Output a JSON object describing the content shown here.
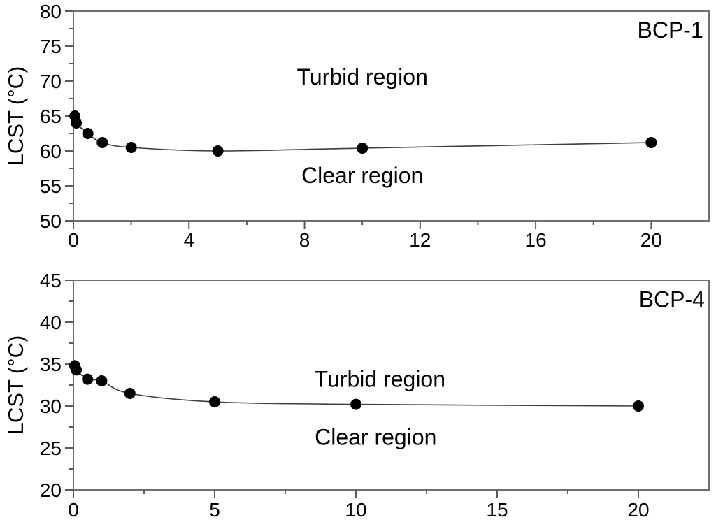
{
  "figure": {
    "background": "#ffffff",
    "frame_color": "#6f6f6f",
    "tick_color": "#5a5a5a",
    "curve_color": "#3d3d3d",
    "marker_color": "#000000",
    "text_color": "#000000"
  },
  "chart_data": [
    {
      "type": "line",
      "panel_label": "BCP-1",
      "ylabel": "LCST (°C)",
      "xlabel": "",
      "x": [
        0.05,
        0.1,
        0.5,
        1,
        2,
        5,
        10,
        20
      ],
      "y": [
        65.0,
        64.0,
        62.5,
        61.2,
        60.5,
        60.0,
        60.4,
        61.2
      ],
      "xlim": [
        0,
        22
      ],
      "ylim": [
        50,
        80
      ],
      "xticks": [
        0,
        4,
        8,
        12,
        16,
        20
      ],
      "yticks": [
        50,
        55,
        60,
        65,
        70,
        75,
        80
      ],
      "minor_xticks": [
        2,
        6,
        10,
        14,
        18
      ],
      "minor_yticks": [
        52.5,
        57.5,
        62.5,
        67.5,
        72.5,
        77.5
      ],
      "grid": false,
      "legend": null,
      "annotations": [
        {
          "text": "Turbid region",
          "x": 10.0,
          "y": 70.6,
          "anchor": "middle"
        },
        {
          "text": "Clear region",
          "x": 10.0,
          "y": 56.5,
          "anchor": "middle"
        },
        {
          "text": "BCP-1",
          "x": 21.8,
          "y": 77.3,
          "anchor": "end"
        }
      ]
    },
    {
      "type": "line",
      "panel_label": "BCP-4",
      "ylabel": "LCST (°C)",
      "xlabel": "",
      "x": [
        0.05,
        0.1,
        0.5,
        1,
        2,
        5,
        10,
        20
      ],
      "y": [
        34.8,
        34.3,
        33.2,
        33.0,
        31.5,
        30.5,
        30.2,
        30.0
      ],
      "xlim": [
        0,
        22.5
      ],
      "ylim": [
        20,
        45
      ],
      "xticks": [
        0,
        5,
        10,
        15,
        20
      ],
      "yticks": [
        20,
        25,
        30,
        35,
        40,
        45
      ],
      "minor_xticks": [
        2.5,
        7.5,
        12.5,
        17.5
      ],
      "minor_yticks": [
        22.5,
        27.5,
        32.5,
        37.5,
        42.5
      ],
      "grid": false,
      "legend": null,
      "annotations": [
        {
          "text": "Turbid region",
          "x": 10.85,
          "y": 33.2,
          "anchor": "middle"
        },
        {
          "text": "Clear region",
          "x": 10.7,
          "y": 26.3,
          "anchor": "middle"
        },
        {
          "text": "BCP-4",
          "x": 22.35,
          "y": 42.7,
          "anchor": "end"
        }
      ]
    }
  ]
}
